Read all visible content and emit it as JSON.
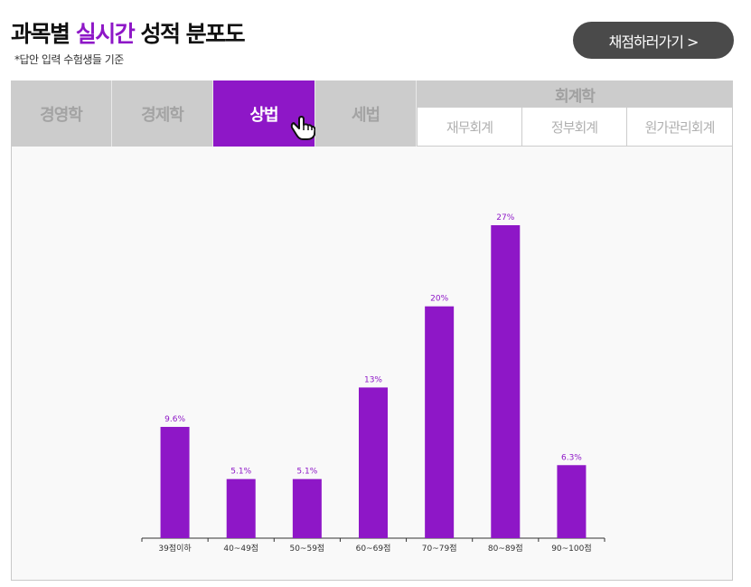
{
  "header": {
    "title_prefix": "과목별",
    "title_accent": "실시간",
    "title_suffix": "성적 분포도",
    "note": "*답안 입력 수험생들 기준",
    "grade_button": "채점하러가기 >"
  },
  "tabs": {
    "items": [
      {
        "label": "경영학",
        "active": false
      },
      {
        "label": "경제학",
        "active": false
      },
      {
        "label": "상법",
        "active": true
      },
      {
        "label": "세법",
        "active": false
      }
    ],
    "group": {
      "label": "회계학",
      "subitems": [
        "재무회계",
        "정부회계",
        "원가관리회계"
      ]
    }
  },
  "colors": {
    "accent": "#8e17c7",
    "tab_inactive": "#cccccc",
    "button": "#4a4a4a"
  },
  "icons": {
    "cursor": "hand-pointer-icon"
  },
  "chart_data": {
    "type": "bar",
    "categories": [
      "39점이하",
      "40~49점",
      "50~59점",
      "60~69점",
      "70~79점",
      "80~89점",
      "90~100점"
    ],
    "values": [
      9.6,
      5.1,
      5.1,
      13,
      20,
      27,
      6.3
    ],
    "value_labels": [
      "9.6%",
      "5.1%",
      "5.1%",
      "13%",
      "20%",
      "27%",
      "6.3%"
    ],
    "unit": "%",
    "ylim": [
      0,
      27
    ],
    "grid": false,
    "bar_color": "#8e17c7"
  }
}
